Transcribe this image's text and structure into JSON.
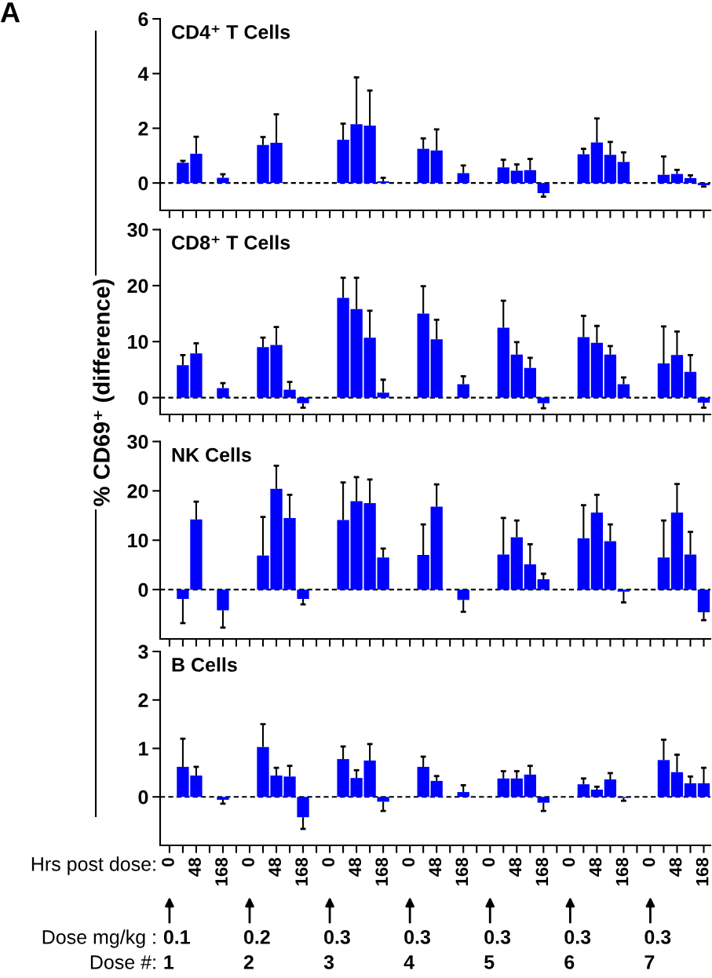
{
  "chart_data": [
    {
      "type": "bar",
      "title": "CD4⁺ T Cells",
      "ylabel": "% CD69⁺ (difference)",
      "annotations": [
        "A"
      ],
      "color": "#0000ff",
      "tick_labels": "y",
      "categories": [
        "0",
        null,
        "48",
        null,
        "168",
        null,
        "0",
        null,
        "48",
        null,
        "168",
        null,
        "0",
        null,
        "48",
        null,
        "168",
        null,
        "0",
        null,
        "48",
        null,
        "168",
        null,
        "0",
        null,
        "48",
        null,
        "168",
        null,
        "0",
        null,
        "48",
        null,
        "168",
        null,
        "0",
        null,
        "48",
        null,
        "168"
      ],
      "values": [
        null,
        0.74,
        1.07,
        null,
        0.19,
        null,
        null,
        1.39,
        1.47,
        null,
        null,
        null,
        null,
        1.58,
        2.15,
        2.1,
        0.06,
        null,
        null,
        1.25,
        1.19,
        null,
        0.36,
        null,
        null,
        0.57,
        0.45,
        0.47,
        -0.37,
        null,
        null,
        1.05,
        1.48,
        1.03,
        0.77,
        null,
        null,
        0.3,
        0.33,
        0.18,
        -0.08
      ],
      "errors": [
        null,
        [
          0.74,
          0.81
        ],
        [
          1.07,
          1.69
        ],
        null,
        [
          0.19,
          0.32
        ],
        null,
        null,
        [
          1.39,
          1.68
        ],
        [
          1.47,
          2.51
        ],
        null,
        null,
        null,
        null,
        [
          1.58,
          2.17
        ],
        [
          2.15,
          3.86
        ],
        [
          2.1,
          3.38
        ],
        [
          0.06,
          0.19
        ],
        null,
        null,
        [
          1.25,
          1.63
        ],
        [
          1.19,
          1.96
        ],
        null,
        [
          0.36,
          0.64
        ],
        null,
        null,
        [
          0.57,
          0.85
        ],
        [
          0.45,
          0.68
        ],
        [
          0.47,
          0.88
        ],
        [
          -0.5,
          -0.37
        ],
        null,
        null,
        [
          1.05,
          1.25
        ],
        [
          1.48,
          2.36
        ],
        [
          1.03,
          1.5
        ],
        [
          0.77,
          1.12
        ],
        null,
        null,
        [
          0.3,
          0.97
        ],
        [
          0.33,
          0.48
        ],
        [
          0.18,
          0.28
        ],
        [
          -0.13,
          -0.08
        ]
      ],
      "ylim": [
        -1,
        6
      ],
      "yticks": [
        0,
        2,
        4,
        6
      ],
      "ref_lines": [
        {
          "axis": "y",
          "value": 0,
          "color": "#000000",
          "line_style": "dashed"
        }
      ],
      "grid": false,
      "legend": false
    },
    {
      "type": "bar",
      "title": "CD8⁺ T Cells",
      "color": "#0000ff",
      "tick_labels": "y",
      "categories": [
        "0",
        null,
        "48",
        null,
        "168",
        null,
        "0",
        null,
        "48",
        null,
        "168",
        null,
        "0",
        null,
        "48",
        null,
        "168",
        null,
        "0",
        null,
        "48",
        null,
        "168",
        null,
        "0",
        null,
        "48",
        null,
        "168",
        null,
        "0",
        null,
        "48",
        null,
        "168",
        null,
        "0",
        null,
        "48",
        null,
        "168"
      ],
      "values": [
        null,
        5.8,
        7.9,
        null,
        1.7,
        null,
        null,
        9.0,
        9.4,
        1.4,
        -1.0,
        null,
        null,
        17.8,
        15.8,
        10.7,
        0.9,
        null,
        null,
        15.0,
        10.4,
        null,
        2.4,
        null,
        null,
        12.5,
        7.7,
        5.3,
        -1.0,
        null,
        null,
        10.8,
        9.8,
        7.7,
        2.4,
        null,
        null,
        6.1,
        7.6,
        4.6,
        -0.9
      ],
      "errors": [
        null,
        [
          5.8,
          7.6
        ],
        [
          7.9,
          9.7
        ],
        null,
        [
          1.7,
          2.6
        ],
        null,
        null,
        [
          9.0,
          10.7
        ],
        [
          9.4,
          12.6
        ],
        [
          1.4,
          2.8
        ],
        [
          -1.8,
          -1.0
        ],
        null,
        null,
        [
          17.8,
          21.4
        ],
        [
          15.8,
          21.4
        ],
        [
          10.7,
          15.5
        ],
        [
          0.9,
          3.2
        ],
        null,
        null,
        [
          15.0,
          19.9
        ],
        [
          10.4,
          13.9
        ],
        null,
        [
          2.4,
          3.8
        ],
        null,
        null,
        [
          12.5,
          17.3
        ],
        [
          7.7,
          9.9
        ],
        [
          5.3,
          7.1
        ],
        [
          -1.9,
          -1.0
        ],
        null,
        null,
        [
          10.8,
          14.6
        ],
        [
          9.8,
          12.8
        ],
        [
          7.7,
          9.2
        ],
        [
          2.4,
          3.6
        ],
        null,
        null,
        [
          6.1,
          12.7
        ],
        [
          7.6,
          11.8
        ],
        [
          4.6,
          7.6
        ],
        [
          -1.8,
          -0.9
        ]
      ],
      "ylim": [
        -3,
        30
      ],
      "yticks": [
        0,
        10,
        20,
        30
      ],
      "ref_lines": [
        {
          "axis": "y",
          "value": 0,
          "color": "#000000",
          "line_style": "dashed"
        }
      ],
      "grid": false,
      "legend": false
    },
    {
      "type": "bar",
      "title": "NK Cells",
      "color": "#0000ff",
      "tick_labels": "y",
      "categories": [
        "0",
        null,
        "48",
        null,
        "168",
        null,
        "0",
        null,
        "48",
        null,
        "168",
        null,
        "0",
        null,
        "48",
        null,
        "168",
        null,
        "0",
        null,
        "48",
        null,
        "168",
        null,
        "0",
        null,
        "48",
        null,
        "168",
        null,
        "0",
        null,
        "48",
        null,
        "168",
        null,
        "0",
        null,
        "48",
        null,
        "168"
      ],
      "values": [
        null,
        -1.9,
        14.2,
        null,
        -4.2,
        null,
        null,
        6.9,
        20.4,
        14.5,
        -1.9,
        null,
        null,
        14.1,
        17.9,
        17.5,
        6.5,
        null,
        null,
        7.0,
        16.8,
        null,
        -2.1,
        null,
        null,
        7.1,
        10.6,
        5.1,
        2.1,
        null,
        null,
        10.4,
        15.6,
        9.8,
        -0.4,
        null,
        null,
        6.5,
        15.6,
        7.1,
        -4.6
      ],
      "errors": [
        null,
        [
          -6.8,
          -1.9
        ],
        [
          14.2,
          17.8
        ],
        null,
        [
          -7.7,
          -4.2
        ],
        null,
        null,
        [
          6.9,
          14.7
        ],
        [
          20.4,
          25.1
        ],
        [
          14.5,
          19.2
        ],
        [
          -3.0,
          -1.9
        ],
        null,
        null,
        [
          14.1,
          21.7
        ],
        [
          17.9,
          22.8
        ],
        [
          17.5,
          22.3
        ],
        [
          6.5,
          8.3
        ],
        null,
        null,
        [
          7.0,
          13.2
        ],
        [
          16.8,
          21.3
        ],
        null,
        [
          -4.5,
          -2.1
        ],
        null,
        null,
        [
          7.1,
          14.5
        ],
        [
          10.6,
          14.0
        ],
        [
          5.1,
          9.2
        ],
        [
          2.1,
          3.2
        ],
        null,
        null,
        [
          10.4,
          17.1
        ],
        [
          15.6,
          19.2
        ],
        [
          9.8,
          13.2
        ],
        [
          -2.6,
          -0.4
        ],
        null,
        null,
        [
          6.5,
          14.0
        ],
        [
          15.6,
          21.4
        ],
        [
          7.1,
          11.7
        ],
        [
          -6.2,
          -4.6
        ]
      ],
      "ylim": [
        -10,
        30
      ],
      "yticks": [
        0,
        10,
        20,
        30
      ],
      "ref_lines": [
        {
          "axis": "y",
          "value": 0,
          "color": "#000000",
          "line_style": "dashed"
        }
      ],
      "grid": false,
      "legend": false
    },
    {
      "type": "bar",
      "title": "B Cells",
      "color": "#0000ff",
      "annotations": [
        "Hrs post dose:",
        "Dose mg/kg :",
        "0.1",
        "0.2",
        "0.3",
        "0.3",
        "0.3",
        "0.3",
        "0.3",
        "Dose #:",
        "1",
        "2",
        "3",
        "4",
        "5",
        "6",
        "7"
      ],
      "categories": [
        "0",
        null,
        "48",
        null,
        "168",
        null,
        "0",
        null,
        "48",
        null,
        "168",
        null,
        "0",
        null,
        "48",
        null,
        "168",
        null,
        "0",
        null,
        "48",
        null,
        "168",
        null,
        "0",
        null,
        "48",
        null,
        "168",
        null,
        "0",
        null,
        "48",
        null,
        "168",
        null,
        "0",
        null,
        "48",
        null,
        "168"
      ],
      "values": [
        null,
        0.62,
        0.44,
        null,
        -0.06,
        null,
        null,
        1.03,
        0.44,
        0.42,
        -0.42,
        null,
        null,
        0.78,
        0.39,
        0.75,
        -0.1,
        null,
        null,
        0.62,
        0.33,
        null,
        0.1,
        null,
        null,
        0.38,
        0.38,
        0.46,
        -0.12,
        null,
        null,
        0.26,
        0.15,
        0.36,
        -0.02,
        null,
        null,
        0.76,
        0.51,
        0.28,
        0.28
      ],
      "errors": [
        null,
        [
          0.62,
          1.2
        ],
        [
          0.44,
          0.62
        ],
        null,
        [
          -0.14,
          -0.06
        ],
        null,
        null,
        [
          1.03,
          1.5
        ],
        [
          0.44,
          0.6
        ],
        [
          0.42,
          0.64
        ],
        [
          -0.66,
          -0.42
        ],
        null,
        null,
        [
          0.78,
          1.04
        ],
        [
          0.39,
          0.55
        ],
        [
          0.75,
          1.09
        ],
        [
          -0.29,
          -0.1
        ],
        null,
        null,
        [
          0.62,
          0.83
        ],
        [
          0.33,
          0.43
        ],
        null,
        [
          0.1,
          0.24
        ],
        null,
        null,
        [
          0.38,
          0.53
        ],
        [
          0.38,
          0.53
        ],
        [
          0.46,
          0.64
        ],
        [
          -0.29,
          -0.12
        ],
        null,
        null,
        [
          0.26,
          0.38
        ],
        [
          0.15,
          0.21
        ],
        [
          0.36,
          0.49
        ],
        [
          -0.08,
          -0.02
        ],
        null,
        null,
        [
          0.76,
          1.18
        ],
        [
          0.51,
          0.87
        ],
        [
          0.28,
          0.42
        ],
        [
          0.28,
          0.6
        ]
      ],
      "ylim": [
        -1,
        3
      ],
      "yticks": [
        0,
        1,
        2,
        3
      ],
      "ref_lines": [
        {
          "axis": "y",
          "value": 0,
          "color": "#000000",
          "line_style": "dashed"
        }
      ],
      "grid": false,
      "legend": false
    }
  ]
}
